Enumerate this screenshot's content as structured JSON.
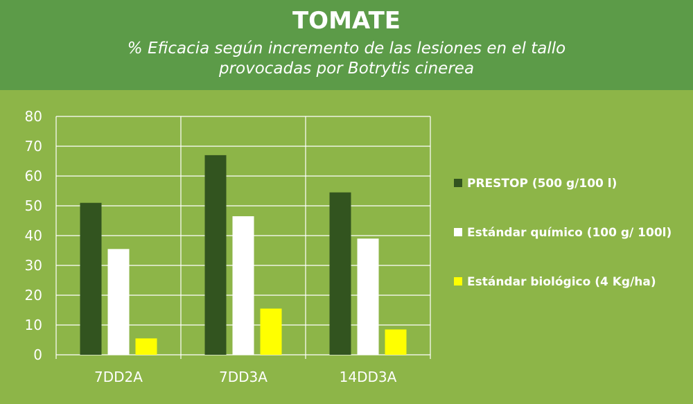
{
  "header": {
    "title": "TOMATE",
    "subtitle_line1": "% Eficacia según incremento de las lesiones en el tallo",
    "subtitle_line2": "provocadas por  Botrytis cinerea"
  },
  "colors": {
    "background": "#8db548",
    "header": "#5c9b48",
    "series": [
      "#32541f",
      "#ffffff",
      "#ffff00"
    ]
  },
  "chart_data": {
    "type": "bar",
    "title": "TOMATE",
    "subtitle": "% Eficacia según incremento de las lesiones en el tallo provocadas por  Botrytis cinerea",
    "categories": [
      "7DD2A",
      "7DD3A",
      "14DD3A"
    ],
    "series": [
      {
        "name": "PRESTOP (500 g/100 l)",
        "values": [
          51,
          67,
          54.5
        ]
      },
      {
        "name": "Estándar químico (100 g/ 100l)",
        "values": [
          35.5,
          46.5,
          39
        ]
      },
      {
        "name": "Estándar biológico (4 Kg/ha)",
        "values": [
          5.5,
          15.5,
          8.5
        ]
      }
    ],
    "ylim": [
      0,
      80
    ],
    "yticks": [
      0,
      10,
      20,
      30,
      40,
      50,
      60,
      70,
      80
    ],
    "xlabel": "",
    "ylabel": "",
    "grid": true,
    "legend": "right"
  }
}
